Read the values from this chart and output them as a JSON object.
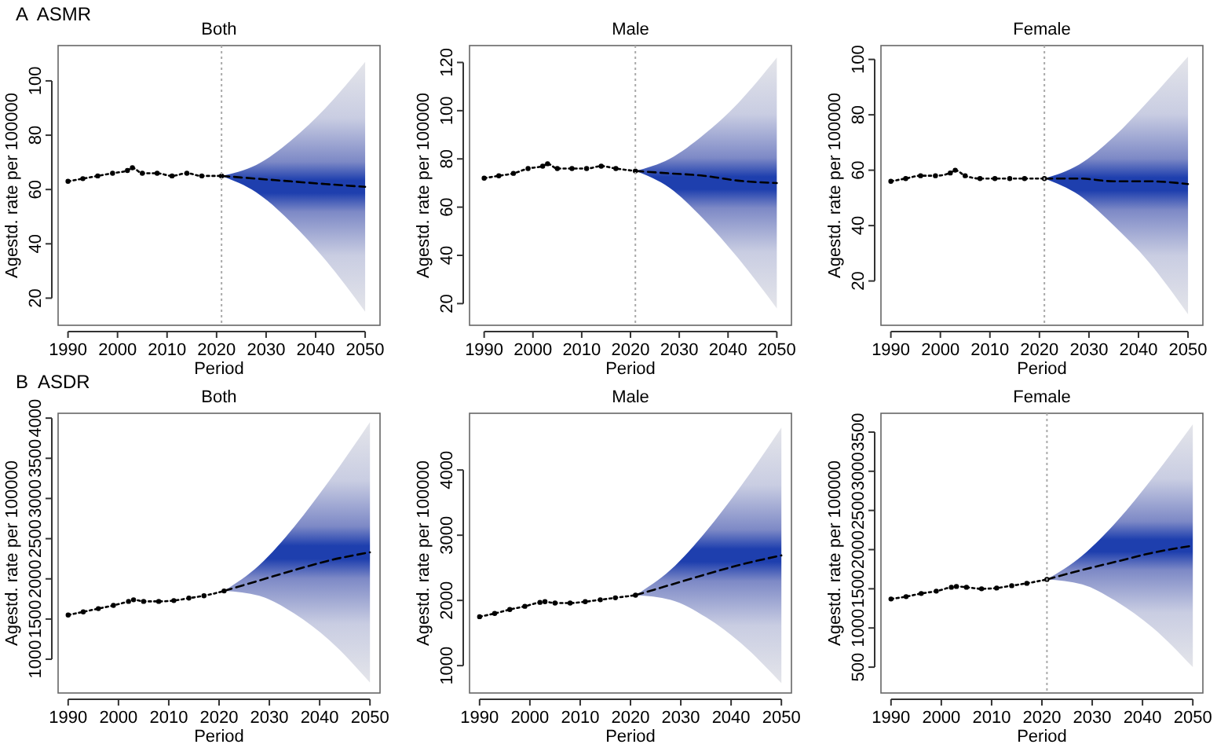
{
  "chart_data": [
    {
      "type": "line",
      "title": "Both",
      "xlabel": "Period",
      "ylabel": "Agestd. rate per 100000",
      "annotations": [
        "A  ASMR"
      ],
      "xlim": [
        1988,
        2053
      ],
      "xticks": [
        1990,
        2000,
        2010,
        2020,
        2030,
        2040,
        2050
      ],
      "ylim": [
        10,
        113
      ],
      "yticks": [
        20,
        40,
        60,
        80,
        100
      ],
      "ref_lines": [
        {
          "axis": "x",
          "value": 2021,
          "color": "#aaaaaa",
          "line_style": "dotted"
        }
      ],
      "series": [
        {
          "color": "#000000",
          "line_style": "dotted",
          "marker": "circle",
          "x": [
            1990,
            1993,
            1996,
            1999,
            2002,
            2003,
            2005,
            2008,
            2011,
            2014,
            2017,
            2021
          ],
          "values": [
            63,
            64,
            65,
            66,
            67,
            68,
            66,
            66,
            65,
            66,
            65,
            65
          ]
        },
        {
          "color": "#000000",
          "line_style": "dashed",
          "marker": "none",
          "x": [
            2021,
            2028,
            2035,
            2042,
            2050
          ],
          "values": [
            65,
            64,
            63,
            62,
            61
          ],
          "lower": [
            65,
            59,
            48,
            34,
            15
          ],
          "upper": [
            65,
            69,
            78,
            90,
            107
          ]
        }
      ]
    },
    {
      "type": "line",
      "title": "Male",
      "xlabel": "Period",
      "ylabel": "Agestd. rate per 100000",
      "xlim": [
        1987,
        2053
      ],
      "xticks": [
        1990,
        2000,
        2010,
        2020,
        2030,
        2040,
        2050
      ],
      "ylim": [
        11,
        127
      ],
      "yticks": [
        20,
        40,
        60,
        80,
        100,
        120
      ],
      "ref_lines": [
        {
          "axis": "x",
          "value": 2021,
          "color": "#aaaaaa",
          "line_style": "dotted"
        }
      ],
      "series": [
        {
          "color": "#000000",
          "line_style": "dotted",
          "marker": "circle",
          "x": [
            1990,
            1993,
            1996,
            1999,
            2002,
            2003,
            2005,
            2008,
            2011,
            2014,
            2017,
            2021
          ],
          "values": [
            72,
            73,
            74,
            76,
            77,
            78,
            76,
            76,
            76,
            77,
            76,
            75
          ]
        },
        {
          "color": "#000000",
          "line_style": "dashed",
          "marker": "none",
          "x": [
            2021,
            2028,
            2035,
            2042,
            2050
          ],
          "values": [
            75,
            74,
            73,
            71,
            70
          ],
          "lower": [
            75,
            68,
            55,
            39,
            18
          ],
          "upper": [
            75,
            80,
            90,
            103,
            122
          ]
        }
      ]
    },
    {
      "type": "line",
      "title": "Female",
      "xlabel": "Period",
      "ylabel": "Agestd. rate per 100000",
      "xlim": [
        1988,
        2053
      ],
      "xticks": [
        1990,
        2000,
        2010,
        2020,
        2030,
        2040,
        2050
      ],
      "ylim": [
        4,
        105
      ],
      "yticks": [
        20,
        40,
        60,
        80,
        100
      ],
      "ref_lines": [
        {
          "axis": "x",
          "value": 2021,
          "color": "#aaaaaa",
          "line_style": "dotted"
        }
      ],
      "series": [
        {
          "color": "#000000",
          "line_style": "dotted",
          "marker": "circle",
          "x": [
            1990,
            1993,
            1996,
            1999,
            2002,
            2003,
            2005,
            2008,
            2011,
            2014,
            2017,
            2021
          ],
          "values": [
            56,
            57,
            58,
            58,
            59,
            60,
            58,
            57,
            57,
            57,
            57,
            57
          ]
        },
        {
          "color": "#000000",
          "line_style": "dashed",
          "marker": "none",
          "x": [
            2021,
            2028,
            2035,
            2042,
            2050
          ],
          "values": [
            57,
            57,
            56,
            56,
            55
          ],
          "lower": [
            57,
            51,
            40,
            27,
            8
          ],
          "upper": [
            57,
            62,
            72,
            85,
            101
          ]
        }
      ]
    },
    {
      "type": "line",
      "title": "Both",
      "xlabel": "Period",
      "ylabel": "Agestd. rate per 100000",
      "annotations": [
        "B  ASDR"
      ],
      "xlim": [
        1988,
        2052
      ],
      "xticks": [
        1990,
        2000,
        2010,
        2020,
        2030,
        2040,
        2050
      ],
      "ylim": [
        580,
        4060
      ],
      "yticks": [
        1000,
        1500,
        2000,
        2500,
        3000,
        3500,
        4000
      ],
      "series": [
        {
          "color": "#000000",
          "line_style": "dotted",
          "marker": "circle",
          "x": [
            1990,
            1993,
            1996,
            1999,
            2002,
            2003,
            2005,
            2008,
            2011,
            2014,
            2017,
            2021
          ],
          "values": [
            1550,
            1590,
            1630,
            1670,
            1720,
            1740,
            1720,
            1720,
            1730,
            1760,
            1790,
            1850
          ]
        },
        {
          "color": "#000000",
          "line_style": "dashed",
          "marker": "none",
          "x": [
            2021,
            2028,
            2035,
            2042,
            2050
          ],
          "values": [
            1850,
            1980,
            2110,
            2230,
            2330
          ],
          "lower": [
            1850,
            1789,
            1567,
            1232,
            710
          ],
          "upper": [
            1850,
            2171,
            2653,
            3228,
            3950
          ]
        }
      ]
    },
    {
      "type": "line",
      "title": "Male",
      "xlabel": "Period",
      "ylabel": "Agestd. rate per 100000",
      "xlim": [
        1988,
        2052
      ],
      "xticks": [
        1990,
        2000,
        2010,
        2020,
        2030,
        2040,
        2050
      ],
      "ylim": [
        580,
        4870
      ],
      "yticks": [
        1000,
        2000,
        3000,
        4000
      ],
      "series": [
        {
          "color": "#000000",
          "line_style": "dotted",
          "marker": "circle",
          "x": [
            1990,
            1993,
            1996,
            1999,
            2002,
            2003,
            2005,
            2008,
            2011,
            2014,
            2017,
            2021
          ],
          "values": [
            1750,
            1800,
            1860,
            1910,
            1970,
            1980,
            1960,
            1960,
            1980,
            2010,
            2040,
            2080
          ]
        },
        {
          "color": "#000000",
          "line_style": "dashed",
          "marker": "none",
          "x": [
            2021,
            2028,
            2035,
            2042,
            2050
          ],
          "values": [
            2080,
            2240,
            2400,
            2550,
            2690
          ],
          "lower": [
            2080,
            2009,
            1743,
            1343,
            730
          ],
          "upper": [
            2080,
            2471,
            3057,
            3757,
            4650
          ]
        }
      ]
    },
    {
      "type": "line",
      "title": "Female",
      "xlabel": "Period",
      "ylabel": "Agestd. rate per 100000",
      "xlim": [
        1988,
        2052
      ],
      "xticks": [
        1990,
        2000,
        2010,
        2020,
        2030,
        2040,
        2050
      ],
      "ylim": [
        170,
        3740
      ],
      "yticks": [
        500,
        1000,
        1500,
        2000,
        2500,
        3000,
        3500
      ],
      "ref_lines": [
        {
          "axis": "x",
          "value": 2021,
          "color": "#aaaaaa",
          "line_style": "dotted"
        }
      ],
      "series": [
        {
          "color": "#000000",
          "line_style": "dotted",
          "marker": "circle",
          "x": [
            1990,
            1993,
            1996,
            1999,
            2002,
            2003,
            2005,
            2008,
            2011,
            2014,
            2017,
            2021
          ],
          "values": [
            1370,
            1400,
            1440,
            1470,
            1520,
            1530,
            1520,
            1500,
            1510,
            1540,
            1570,
            1620
          ]
        },
        {
          "color": "#000000",
          "line_style": "dashed",
          "marker": "none",
          "x": [
            2021,
            2028,
            2035,
            2042,
            2050
          ],
          "values": [
            1620,
            1740,
            1850,
            1960,
            2050
          ],
          "lower": [
            1620,
            1557,
            1331,
            1005,
            500
          ],
          "upper": [
            1620,
            1923,
            2369,
            2915,
            3600
          ]
        }
      ]
    }
  ]
}
